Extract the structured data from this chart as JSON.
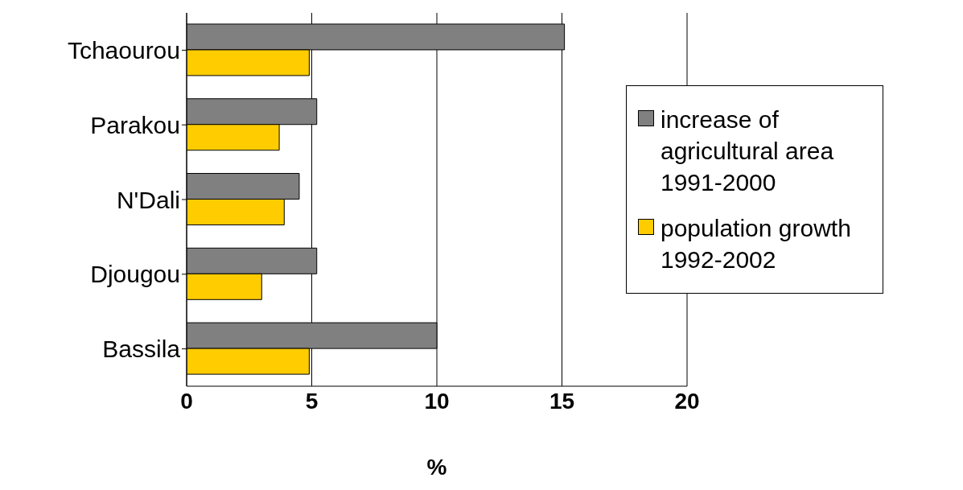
{
  "chart_data": {
    "type": "bar",
    "orientation": "horizontal",
    "xlabel": "%",
    "categories": [
      "Tchaourou",
      "Parakou",
      "N'Dali",
      "Djougou",
      "Bassila"
    ],
    "series": [
      {
        "name": "increase of agricultural area 1991-2000",
        "color": "#808080",
        "values": [
          15.1,
          5.2,
          4.5,
          5.2,
          10.0
        ]
      },
      {
        "name": "population growth 1992-2002",
        "color": "#ffcc00",
        "values": [
          4.9,
          3.7,
          3.9,
          3.0,
          4.9
        ]
      }
    ],
    "xlim": [
      0,
      20
    ],
    "xticks": [
      0,
      5,
      10,
      15,
      20
    ],
    "grid": "x",
    "legend": "right"
  }
}
